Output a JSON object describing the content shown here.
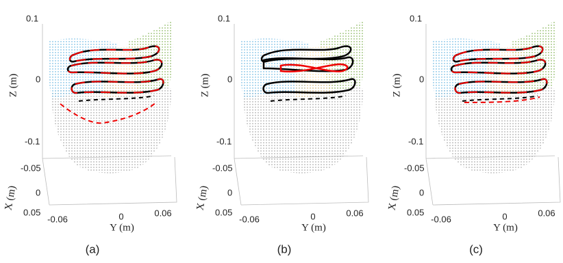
{
  "panels": [
    {
      "caption": "(a)",
      "z_label": "Z (m)",
      "z_ticks": [
        "0.1",
        "0",
        "-0.1"
      ],
      "x_label": "X (m)",
      "x_ticks": [
        "-0.05",
        "0",
        "0.05"
      ],
      "y_label": "Y (m)",
      "y_ticks": [
        "-0.06",
        "0",
        "0.06"
      ]
    },
    {
      "caption": "(b)",
      "z_label": "Z (m)",
      "z_ticks": [
        "0.1",
        "0",
        "-0.1"
      ],
      "x_label": "X (m)",
      "x_ticks": [
        "-0.05",
        "0",
        "0.05"
      ],
      "y_label": "Y (m)",
      "y_ticks": [
        "-0.06",
        "0",
        "0.06"
      ]
    },
    {
      "caption": "(c)",
      "z_label": "Z (m)",
      "z_ticks": [
        "0.1",
        "0",
        "-0.1"
      ],
      "x_label": "X (m)",
      "x_ticks": [
        "-0.05",
        "0",
        "0.05"
      ],
      "y_label": "Y (m)",
      "y_ticks": [
        "-0.06",
        "0",
        "0.06"
      ]
    }
  ]
}
